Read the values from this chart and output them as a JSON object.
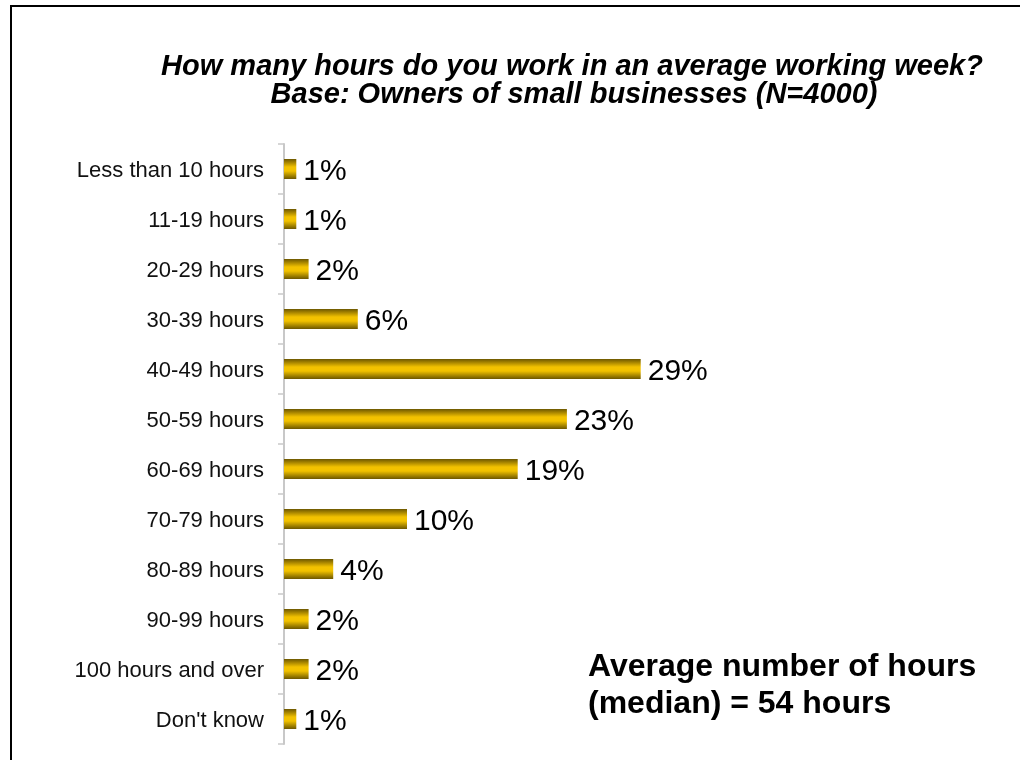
{
  "chart_data": {
    "type": "bar",
    "orientation": "horizontal",
    "title": "How many hours do you work in an average working week?",
    "subtitle": "Base: Owners of small businesses (N=4000)",
    "categories": [
      "Less than 10 hours",
      "11-19 hours",
      "20-29 hours",
      "30-39 hours",
      "40-49 hours",
      "50-59 hours",
      "60-69 hours",
      "70-79 hours",
      "80-89 hours",
      "90-99 hours",
      "100 hours and over",
      "Don't know"
    ],
    "values": [
      1,
      1,
      2,
      6,
      29,
      23,
      19,
      10,
      4,
      2,
      2,
      1
    ],
    "value_labels": [
      "1%",
      "1%",
      "2%",
      "6%",
      "29%",
      "23%",
      "19%",
      "10%",
      "4%",
      "2%",
      "2%",
      "1%"
    ],
    "color": "#f2c200",
    "tick_labels": "y",
    "annotations": [
      "Average number of hours (median) = 54 hours"
    ]
  }
}
